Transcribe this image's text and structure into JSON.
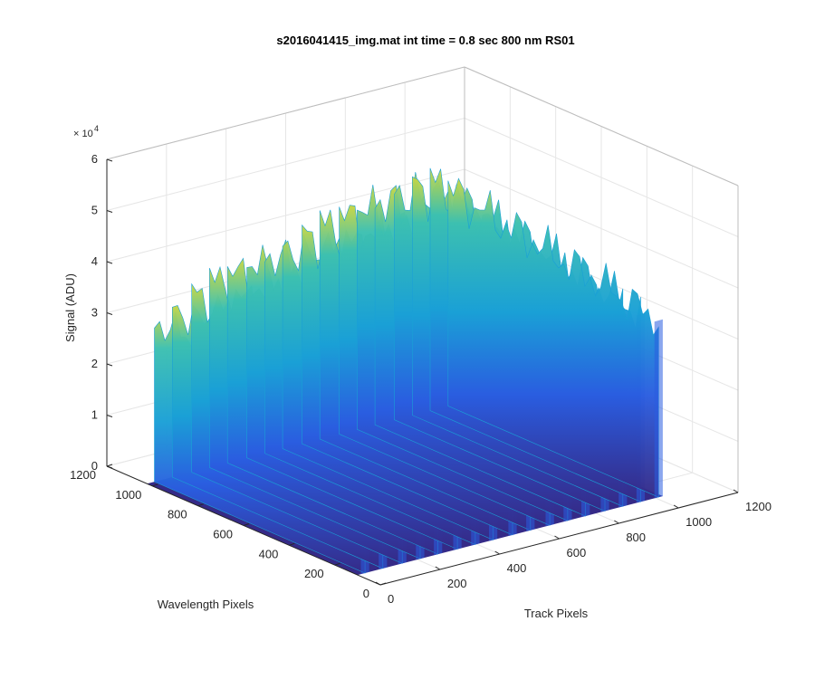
{
  "chart_data": {
    "type": "surface",
    "title": "s2016041415_img.mat int time = 0.8 sec  800 nm RS01",
    "xlabel": "Track Pixels",
    "ylabel": "Wavelength Pixels",
    "zlabel": "Signal (ADU)",
    "z_exponent_label": "× 10",
    "z_exponent_power": "4",
    "x_ticks": [
      "0",
      "200",
      "400",
      "600",
      "800",
      "1000",
      "1200"
    ],
    "y_ticks": [
      "0",
      "200",
      "400",
      "600",
      "800",
      "1000",
      "1200"
    ],
    "z_ticks": [
      "0",
      "1",
      "2",
      "3",
      "4",
      "5",
      "6"
    ],
    "xlim": [
      0,
      1200
    ],
    "ylim": [
      0,
      1200
    ],
    "zlim": [
      0,
      60000
    ],
    "grid": true,
    "colormap": "parula",
    "colors": {
      "floor": "#352a87",
      "low": "#2a5de0",
      "mid": "#1aa0d6",
      "high": "#3cc0b0",
      "peak": "#c8d640"
    },
    "background_level": 0,
    "data_extent": {
      "track_min": 0,
      "track_max": 1024,
      "wavelength_min": 100,
      "wavelength_max": 1024
    },
    "series": [
      {
        "type": "track-ridges",
        "track_positions": [
          25,
          85,
          150,
          210,
          270,
          335,
          395,
          455,
          520,
          580,
          645,
          705,
          765,
          830,
          890,
          950,
          1010
        ],
        "peak_signal": [
          36000,
          38000,
          40000,
          42000,
          43000,
          44000,
          45000,
          46000,
          47000,
          48000,
          49000,
          50000,
          51000,
          52000,
          52000,
          51000,
          48000
        ]
      }
    ]
  }
}
